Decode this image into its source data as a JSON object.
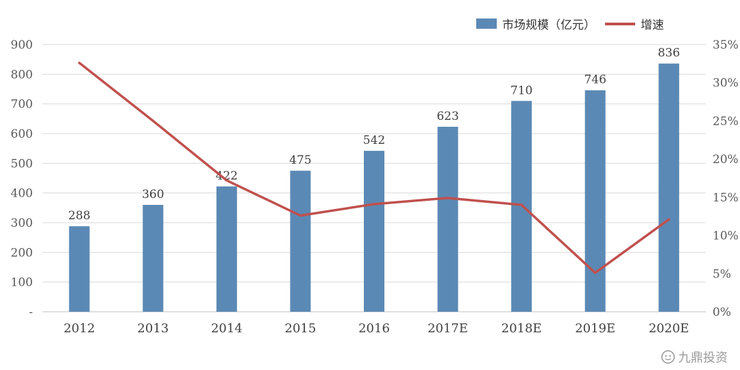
{
  "chart_data": {
    "type": "combo",
    "title": "",
    "categories": [
      "2012",
      "2013",
      "2014",
      "2015",
      "2016",
      "2017E",
      "2018E",
      "2019E",
      "2020E"
    ],
    "series": [
      {
        "name": "市场规模（亿元）",
        "type": "bar",
        "axis": "left",
        "color": "#5B89B5",
        "values": [
          288,
          360,
          422,
          475,
          542,
          623,
          710,
          746,
          836
        ]
      },
      {
        "name": "增速",
        "type": "line",
        "axis": "right",
        "color": "#C0504D",
        "unit": "%",
        "values": [
          32.6,
          25.0,
          17.2,
          12.6,
          14.1,
          14.9,
          14.0,
          5.1,
          12.1
        ]
      }
    ],
    "left_axis": {
      "min": 0,
      "max": 900,
      "step": 100,
      "tick_labels": [
        "-",
        "100",
        "200",
        "300",
        "400",
        "500",
        "600",
        "700",
        "800",
        "900"
      ]
    },
    "right_axis": {
      "min": 0,
      "max": 35,
      "step": 5,
      "tick_labels": [
        "0%",
        "5%",
        "10%",
        "15%",
        "20%",
        "25%",
        "30%",
        "35%"
      ]
    },
    "grid": true,
    "legend_position": "top-right",
    "bar_value_labels": [
      "288",
      "360",
      "422",
      "475",
      "542",
      "623",
      "710",
      "746",
      "836"
    ]
  },
  "legend": {
    "bar_label": "市场规模（亿元）",
    "line_label": "增速"
  },
  "watermark": {
    "text": "九鼎投资"
  },
  "colors": {
    "bar": "#5B89B5",
    "line": "#C0504D",
    "grid": "#D9D9D9",
    "axis_text": "#595959",
    "value_text": "#3f3f3f"
  }
}
